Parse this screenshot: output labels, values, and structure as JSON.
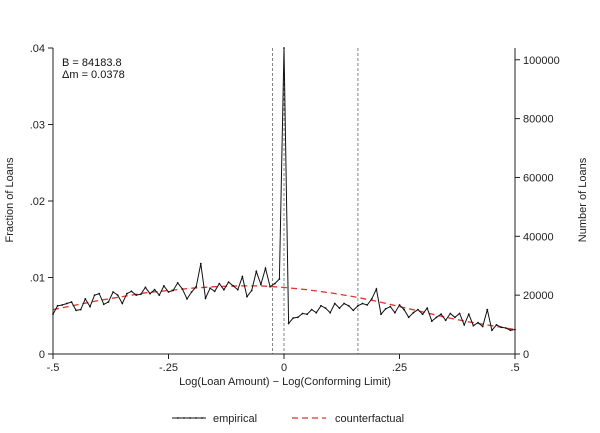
{
  "chart_data": {
    "type": "line",
    "title": "",
    "xlabel": "Log(Loan Amount) − Log(Conforming Limit)",
    "ylabel_left": "Fraction of Loans",
    "ylabel_right": "Number of Loans",
    "xlim": [
      -0.5,
      0.5
    ],
    "ylim_left": [
      0,
      0.04
    ],
    "ylim_right": [
      0,
      104000
    ],
    "x_ticks": [
      -0.5,
      -0.25,
      0,
      0.25,
      0.5
    ],
    "x_tick_labels": [
      "-.5",
      "-.25",
      "0",
      ".25",
      ".5"
    ],
    "y_left_ticks": [
      0,
      0.01,
      0.02,
      0.03,
      0.04
    ],
    "y_left_tick_labels": [
      "0",
      ".01",
      ".02",
      ".03",
      ".04"
    ],
    "y_right_ticks": [
      0,
      20000,
      40000,
      60000,
      80000,
      100000
    ],
    "y_right_tick_labels": [
      "0",
      "20000",
      "40000",
      "60000",
      "80000",
      "100000"
    ],
    "vlines": [
      -0.025,
      0,
      0.16
    ],
    "annotations": [
      "B = 84183.8",
      "Δm = 0.0378"
    ],
    "legend_position": "bottom",
    "colors": {
      "empirical": "#111111",
      "counterfactual": "#e8322b",
      "vline": "#666666"
    },
    "series": [
      {
        "name": "empirical",
        "x": [
          -0.5,
          -0.49,
          -0.48,
          -0.47,
          -0.46,
          -0.45,
          -0.44,
          -0.43,
          -0.42,
          -0.41,
          -0.4,
          -0.39,
          -0.38,
          -0.37,
          -0.36,
          -0.35,
          -0.34,
          -0.33,
          -0.32,
          -0.31,
          -0.3,
          -0.29,
          -0.28,
          -0.27,
          -0.26,
          -0.25,
          -0.24,
          -0.23,
          -0.22,
          -0.21,
          -0.2,
          -0.19,
          -0.18,
          -0.17,
          -0.16,
          -0.15,
          -0.14,
          -0.13,
          -0.12,
          -0.11,
          -0.1,
          -0.09,
          -0.08,
          -0.07,
          -0.06,
          -0.05,
          -0.04,
          -0.03,
          -0.02,
          -0.01,
          0,
          0.01,
          0.02,
          0.03,
          0.04,
          0.05,
          0.06,
          0.07,
          0.08,
          0.09,
          0.1,
          0.11,
          0.12,
          0.13,
          0.14,
          0.15,
          0.16,
          0.17,
          0.18,
          0.19,
          0.2,
          0.21,
          0.22,
          0.23,
          0.24,
          0.25,
          0.26,
          0.27,
          0.28,
          0.29,
          0.3,
          0.31,
          0.32,
          0.33,
          0.34,
          0.35,
          0.36,
          0.37,
          0.38,
          0.39,
          0.4,
          0.41,
          0.42,
          0.43,
          0.44,
          0.45,
          0.46,
          0.47,
          0.48,
          0.49,
          0.5
        ],
        "y": [
          0.0052,
          0.0063,
          0.0064,
          0.0066,
          0.0068,
          0.0057,
          0.0058,
          0.0072,
          0.0062,
          0.0077,
          0.0079,
          0.0065,
          0.0068,
          0.0081,
          0.0077,
          0.0066,
          0.0079,
          0.0082,
          0.0077,
          0.0078,
          0.0087,
          0.0079,
          0.0084,
          0.0077,
          0.0089,
          0.0081,
          0.0083,
          0.0093,
          0.0085,
          0.0072,
          0.0081,
          0.0088,
          0.0118,
          0.0073,
          0.0086,
          0.0082,
          0.0092,
          0.0084,
          0.0094,
          0.0089,
          0.0084,
          0.0101,
          0.0075,
          0.0083,
          0.0108,
          0.0091,
          0.0112,
          0.0088,
          0.0092,
          0.0098,
          0.04,
          0.004,
          0.0047,
          0.0048,
          0.0053,
          0.0052,
          0.0058,
          0.0054,
          0.0063,
          0.006,
          0.0054,
          0.0066,
          0.006,
          0.0066,
          0.0063,
          0.0057,
          0.0063,
          0.0066,
          0.0064,
          0.0072,
          0.0085,
          0.0052,
          0.0059,
          0.0062,
          0.0054,
          0.0064,
          0.0058,
          0.0048,
          0.0054,
          0.0058,
          0.0052,
          0.006,
          0.0043,
          0.0048,
          0.0052,
          0.0044,
          0.0053,
          0.0048,
          0.0053,
          0.0038,
          0.0052,
          0.0037,
          0.0041,
          0.0036,
          0.0058,
          0.0031,
          0.0038,
          0.0035,
          0.0034,
          0.0031,
          0.0032
        ]
      },
      {
        "name": "counterfactual",
        "x": [
          -0.5,
          -0.45,
          -0.4,
          -0.35,
          -0.3,
          -0.25,
          -0.2,
          -0.15,
          -0.1,
          -0.05,
          0,
          0.05,
          0.1,
          0.15,
          0.2,
          0.25,
          0.3,
          0.35,
          0.4,
          0.45,
          0.5
        ],
        "y": [
          0.0058,
          0.0064,
          0.007,
          0.0075,
          0.008,
          0.0083,
          0.0086,
          0.0088,
          0.0089,
          0.0089,
          0.0087,
          0.0084,
          0.008,
          0.0075,
          0.0069,
          0.0062,
          0.0055,
          0.0048,
          0.0042,
          0.0037,
          0.0032
        ]
      }
    ]
  }
}
